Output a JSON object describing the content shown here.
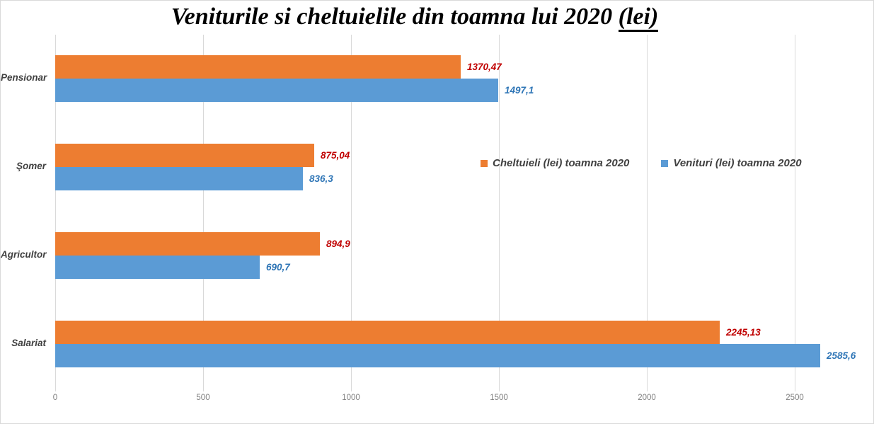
{
  "chart_data": {
    "type": "bar",
    "orientation": "horizontal",
    "title": "Veniturile si cheltuielile din toamna lui 2020 (lei)",
    "title_main": "Veniturile si cheltuielile din toamna lui 2020 ",
    "title_underlined": "(lei)",
    "categories": [
      "Pensionar",
      "Şomer",
      "Agricultor",
      "Salariat"
    ],
    "series": [
      {
        "name": "Cheltuieli (lei) toamna 2020",
        "color": "#ED7D31",
        "label_color": "#C00000",
        "values": [
          1370.47,
          875.04,
          894.9,
          2245.13
        ],
        "value_labels": [
          "1370,47",
          "875,04",
          "894,9",
          "2245,13"
        ]
      },
      {
        "name": "Venituri (lei) toamna 2020",
        "color": "#5B9BD5",
        "label_color": "#2E75B6",
        "values": [
          1497.1,
          836.3,
          690.7,
          2585.6
        ],
        "value_labels": [
          "1497,1",
          "836,3",
          "690,7",
          "2585,6"
        ]
      }
    ],
    "x_ticks": [
      "0",
      "500",
      "1000",
      "1500",
      "2000",
      "2500"
    ],
    "x_tick_values": [
      0,
      500,
      1000,
      1500,
      2000,
      2500
    ],
    "xlim": [
      0,
      2770
    ],
    "grid": true,
    "legend_position": "middle-right",
    "colors": {
      "grid": "#D9D9D9",
      "border": "#D9D9D9",
      "axis_label": "#808080",
      "category_label": "#404040",
      "legend_text": "#404040",
      "title": "#000000"
    }
  }
}
